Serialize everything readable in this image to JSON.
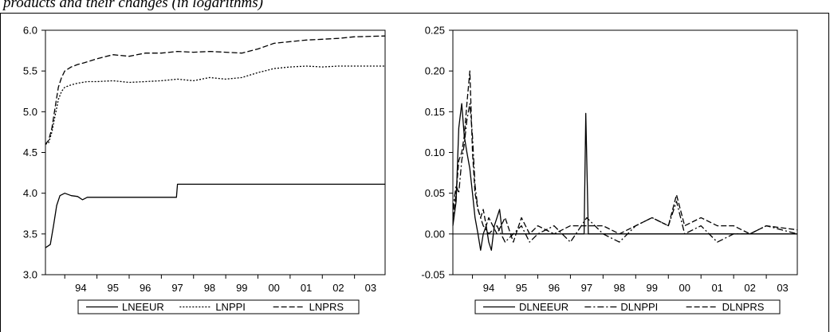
{
  "caption": "products and their changes (in logarithms)",
  "chart_data": [
    {
      "type": "line",
      "title": "",
      "xlabel": "",
      "ylabel": "",
      "xlim": [
        1993.4,
        2003.95
      ],
      "ylim": [
        3.0,
        6.0
      ],
      "yticks": [
        "3.0",
        "3.5",
        "4.0",
        "4.5",
        "5.0",
        "5.5",
        "6.0"
      ],
      "ytick_values": [
        3.0,
        3.5,
        4.0,
        4.5,
        5.0,
        5.5,
        6.0
      ],
      "xticks": [
        "94",
        "95",
        "96",
        "97",
        "98",
        "99",
        "00",
        "01",
        "02",
        "03"
      ],
      "xtick_values": [
        1994.0,
        1995.0,
        1996.0,
        1997.0,
        1998.0,
        1999.0,
        2000.0,
        2001.0,
        2002.0,
        2003.0
      ],
      "grid": false,
      "legend_position": "bottom",
      "series": [
        {
          "name": "LNEEUR",
          "style": "solid",
          "points": [
            [
              1993.4,
              3.33
            ],
            [
              1993.55,
              3.37
            ],
            [
              1993.65,
              3.6
            ],
            [
              1993.75,
              3.85
            ],
            [
              1993.85,
              3.97
            ],
            [
              1994.0,
              4.0
            ],
            [
              1994.2,
              3.97
            ],
            [
              1994.4,
              3.96
            ],
            [
              1994.55,
              3.92
            ],
            [
              1994.7,
              3.95
            ],
            [
              1995.0,
              3.95
            ],
            [
              1996.0,
              3.95
            ],
            [
              1997.0,
              3.95
            ],
            [
              1997.47,
              3.95
            ],
            [
              1997.5,
              4.11
            ],
            [
              1998.0,
              4.11
            ],
            [
              1999.0,
              4.11
            ],
            [
              2000.0,
              4.11
            ],
            [
              2001.0,
              4.11
            ],
            [
              2002.0,
              4.11
            ],
            [
              2003.0,
              4.11
            ],
            [
              2003.95,
              4.11
            ]
          ]
        },
        {
          "name": "LNPPI",
          "style": "dotted",
          "points": [
            [
              1993.4,
              4.6
            ],
            [
              1993.5,
              4.62
            ],
            [
              1993.6,
              4.75
            ],
            [
              1993.7,
              4.95
            ],
            [
              1993.8,
              5.15
            ],
            [
              1993.9,
              5.25
            ],
            [
              1994.0,
              5.3
            ],
            [
              1994.2,
              5.33
            ],
            [
              1994.4,
              5.35
            ],
            [
              1994.7,
              5.37
            ],
            [
              1995.0,
              5.37
            ],
            [
              1995.5,
              5.38
            ],
            [
              1996.0,
              5.36
            ],
            [
              1996.5,
              5.37
            ],
            [
              1997.0,
              5.38
            ],
            [
              1997.5,
              5.4
            ],
            [
              1998.0,
              5.38
            ],
            [
              1998.5,
              5.42
            ],
            [
              1999.0,
              5.4
            ],
            [
              1999.5,
              5.42
            ],
            [
              2000.0,
              5.48
            ],
            [
              2000.5,
              5.53
            ],
            [
              2001.0,
              5.55
            ],
            [
              2001.5,
              5.56
            ],
            [
              2002.0,
              5.55
            ],
            [
              2002.5,
              5.56
            ],
            [
              2003.0,
              5.56
            ],
            [
              2003.95,
              5.56
            ]
          ]
        },
        {
          "name": "LNPRS",
          "style": "dashed",
          "points": [
            [
              1993.4,
              4.6
            ],
            [
              1993.5,
              4.65
            ],
            [
              1993.6,
              4.8
            ],
            [
              1993.7,
              5.05
            ],
            [
              1993.8,
              5.3
            ],
            [
              1993.9,
              5.42
            ],
            [
              1994.0,
              5.5
            ],
            [
              1994.2,
              5.55
            ],
            [
              1994.4,
              5.58
            ],
            [
              1994.6,
              5.6
            ],
            [
              1995.0,
              5.65
            ],
            [
              1995.5,
              5.7
            ],
            [
              1996.0,
              5.68
            ],
            [
              1996.5,
              5.72
            ],
            [
              1997.0,
              5.72
            ],
            [
              1997.5,
              5.74
            ],
            [
              1998.0,
              5.73
            ],
            [
              1998.5,
              5.74
            ],
            [
              1999.0,
              5.73
            ],
            [
              1999.5,
              5.72
            ],
            [
              2000.0,
              5.77
            ],
            [
              2000.5,
              5.84
            ],
            [
              2001.0,
              5.86
            ],
            [
              2001.5,
              5.88
            ],
            [
              2002.0,
              5.89
            ],
            [
              2002.5,
              5.9
            ],
            [
              2003.0,
              5.92
            ],
            [
              2003.95,
              5.93
            ]
          ]
        }
      ]
    },
    {
      "type": "line",
      "title": "",
      "xlabel": "",
      "ylabel": "",
      "xlim": [
        1993.4,
        2003.95
      ],
      "ylim": [
        -0.05,
        0.25
      ],
      "yticks": [
        "-0.05",
        "0.00",
        "0.05",
        "0.10",
        "0.15",
        "0.20",
        "0.25"
      ],
      "ytick_values": [
        -0.05,
        0.0,
        0.05,
        0.1,
        0.15,
        0.2,
        0.25
      ],
      "xticks": [
        "94",
        "95",
        "96",
        "97",
        "98",
        "99",
        "00",
        "01",
        "02",
        "03"
      ],
      "xtick_values": [
        1994.0,
        1995.0,
        1996.0,
        1997.0,
        1998.0,
        1999.0,
        2000.0,
        2001.0,
        2002.0,
        2003.0
      ],
      "grid": false,
      "zero_line": true,
      "legend_position": "bottom",
      "series": [
        {
          "name": "DLNEEUR",
          "style": "solid",
          "points": [
            [
              1993.4,
              0.01
            ],
            [
              1993.5,
              0.04
            ],
            [
              1993.58,
              0.13
            ],
            [
              1993.67,
              0.16
            ],
            [
              1993.75,
              0.12
            ],
            [
              1993.83,
              0.1
            ],
            [
              1993.92,
              0.08
            ],
            [
              1994.0,
              0.05
            ],
            [
              1994.08,
              0.02
            ],
            [
              1994.17,
              0.0
            ],
            [
              1994.25,
              -0.02
            ],
            [
              1994.33,
              0.0
            ],
            [
              1994.42,
              0.01
            ],
            [
              1994.5,
              -0.01
            ],
            [
              1994.58,
              -0.02
            ],
            [
              1994.67,
              0.01
            ],
            [
              1994.75,
              0.02
            ],
            [
              1994.83,
              0.03
            ],
            [
              1994.92,
              0.0
            ],
            [
              1995.0,
              0.0
            ],
            [
              1995.5,
              0.0
            ],
            [
              1996.0,
              0.0
            ],
            [
              1997.0,
              0.0
            ],
            [
              1997.42,
              0.0
            ],
            [
              1997.47,
              0.148
            ],
            [
              1997.55,
              0.0
            ],
            [
              1998.0,
              0.0
            ],
            [
              1999.0,
              0.0
            ],
            [
              2000.0,
              0.0
            ],
            [
              2001.0,
              0.0
            ],
            [
              2002.0,
              0.0
            ],
            [
              2003.0,
              0.0
            ],
            [
              2003.95,
              0.0
            ]
          ]
        },
        {
          "name": "DLNPPI",
          "style": "dashdot",
          "points": [
            [
              1993.4,
              0.03
            ],
            [
              1993.5,
              0.06
            ],
            [
              1993.58,
              0.05
            ],
            [
              1993.67,
              0.09
            ],
            [
              1993.75,
              0.11
            ],
            [
              1993.83,
              0.14
            ],
            [
              1993.92,
              0.16
            ],
            [
              1994.0,
              0.12
            ],
            [
              1994.08,
              0.06
            ],
            [
              1994.17,
              0.03
            ],
            [
              1994.25,
              0.02
            ],
            [
              1994.33,
              0.01
            ],
            [
              1994.5,
              0.0
            ],
            [
              1994.75,
              0.01
            ],
            [
              1995.0,
              -0.01
            ],
            [
              1995.25,
              0.0
            ],
            [
              1995.5,
              0.01
            ],
            [
              1995.75,
              -0.01
            ],
            [
              1996.0,
              0.0
            ],
            [
              1996.5,
              0.01
            ],
            [
              1997.0,
              -0.01
            ],
            [
              1997.5,
              0.02
            ],
            [
              1998.0,
              0.0
            ],
            [
              1998.5,
              -0.01
            ],
            [
              1999.0,
              0.01
            ],
            [
              1999.5,
              0.02
            ],
            [
              2000.0,
              0.01
            ],
            [
              2000.25,
              0.04
            ],
            [
              2000.5,
              0.0
            ],
            [
              2001.0,
              0.01
            ],
            [
              2001.5,
              -0.01
            ],
            [
              2002.0,
              0.0
            ],
            [
              2002.5,
              0.0
            ],
            [
              2003.0,
              0.01
            ],
            [
              2003.95,
              0.0
            ]
          ]
        },
        {
          "name": "DLNPRS",
          "style": "dashed",
          "points": [
            [
              1993.4,
              0.02
            ],
            [
              1993.5,
              0.05
            ],
            [
              1993.58,
              0.09
            ],
            [
              1993.67,
              0.1
            ],
            [
              1993.75,
              0.12
            ],
            [
              1993.83,
              0.16
            ],
            [
              1993.92,
              0.2
            ],
            [
              1994.0,
              0.1
            ],
            [
              1994.08,
              0.05
            ],
            [
              1994.17,
              0.03
            ],
            [
              1994.25,
              0.02
            ],
            [
              1994.33,
              0.03
            ],
            [
              1994.42,
              0.01
            ],
            [
              1994.5,
              0.02
            ],
            [
              1994.75,
              0.0
            ],
            [
              1995.0,
              0.02
            ],
            [
              1995.25,
              -0.01
            ],
            [
              1995.5,
              0.02
            ],
            [
              1995.75,
              0.0
            ],
            [
              1996.0,
              0.01
            ],
            [
              1996.5,
              0.0
            ],
            [
              1997.0,
              0.01
            ],
            [
              1997.5,
              0.01
            ],
            [
              1998.0,
              0.01
            ],
            [
              1998.5,
              0.0
            ],
            [
              1999.0,
              0.01
            ],
            [
              1999.5,
              0.02
            ],
            [
              2000.0,
              0.01
            ],
            [
              2000.25,
              0.048
            ],
            [
              2000.5,
              0.01
            ],
            [
              2001.0,
              0.02
            ],
            [
              2001.5,
              0.01
            ],
            [
              2002.0,
              0.01
            ],
            [
              2002.5,
              0.0
            ],
            [
              2003.0,
              0.01
            ],
            [
              2003.95,
              0.005
            ]
          ]
        }
      ]
    }
  ]
}
